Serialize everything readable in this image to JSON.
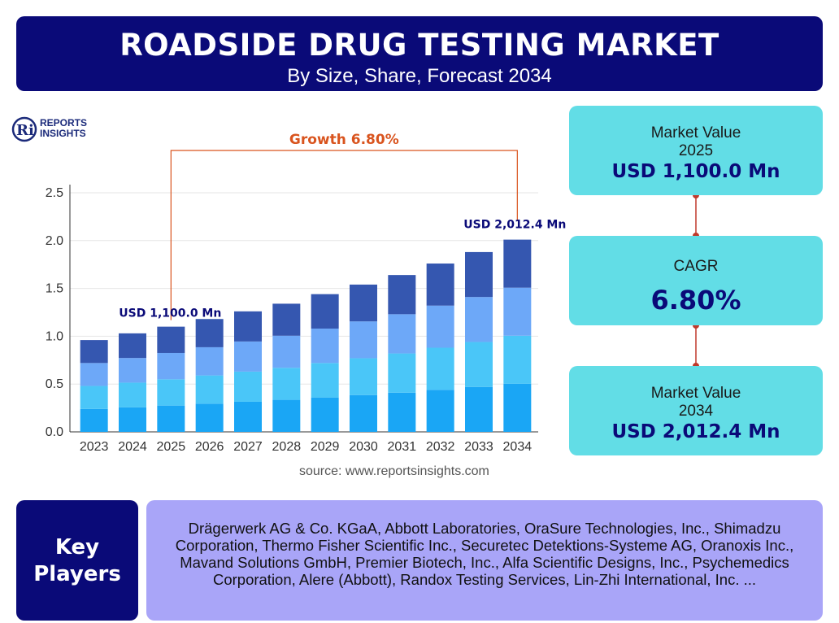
{
  "header": {
    "title": "ROADSIDE DRUG TESTING MARKET",
    "subtitle": "By Size, Share, Forecast 2034"
  },
  "logo": {
    "line1": "REPORTS",
    "line2": "INSIGHTS",
    "mark": "Ri"
  },
  "chart_data": {
    "type": "bar",
    "stacked": true,
    "categories": [
      "2023",
      "2024",
      "2025",
      "2026",
      "2027",
      "2028",
      "2029",
      "2030",
      "2031",
      "2032",
      "2033",
      "2034"
    ],
    "totals": [
      0.96,
      1.03,
      1.1,
      1.18,
      1.26,
      1.34,
      1.44,
      1.54,
      1.64,
      1.76,
      1.88,
      2.01
    ],
    "segment_shares": [
      0.25,
      0.25,
      0.25,
      0.25
    ],
    "segment_colors": [
      "#1aa6f5",
      "#4ac6f8",
      "#6da8f8",
      "#3557b0"
    ],
    "yticks": [
      "0.0",
      "0.5",
      "1.0",
      "1.5",
      "2.0",
      "2.5"
    ],
    "ylim": [
      0,
      2.5
    ],
    "grid": true,
    "annotations": {
      "growth": "Growth 6.80%",
      "start_label": "USD 1,100.0 Mn",
      "end_label": "USD 2,012.4 Mn"
    }
  },
  "source": "source: www.reportsinsights.com",
  "cards": {
    "value_2025": {
      "label": "Market Value",
      "year": "2025",
      "value": "USD 1,100.0 Mn"
    },
    "cagr": {
      "label": "CAGR",
      "value": "6.80%"
    },
    "value_2034": {
      "label": "Market Value",
      "year": "2034",
      "value": "USD 2,012.4 Mn"
    }
  },
  "key_players": {
    "heading_line1": "Key",
    "heading_line2": "Players",
    "text": "Drägerwerk AG & Co. KGaA, Abbott Laboratories, OraSure Technologies, Inc., Shimadzu Corporation, Thermo Fisher Scientific Inc., Securetec Detektions-Systeme AG, Oranoxis Inc., Mavand Solutions GmbH, Premier Biotech, Inc., Alfa Scientific Designs, Inc., Psychemedics Corporation, Alere (Abbott), Randox Testing Services, Lin-Zhi International, Inc. ..."
  },
  "colors": {
    "navy": "#0a0a78",
    "cyan": "#62dde6",
    "lavender": "#a9a5f8",
    "growth": "#d9541e"
  }
}
